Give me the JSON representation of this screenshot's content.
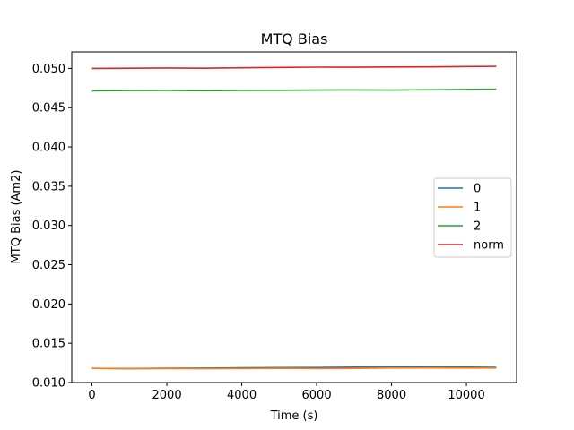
{
  "chart_data": {
    "type": "line",
    "title": "MTQ Bias",
    "xlabel": "Time (s)",
    "ylabel": "MTQ Bias (Am2)",
    "xlim": [
      -540,
      11340
    ],
    "ylim": [
      0.01,
      0.0521
    ],
    "xticks": [
      0,
      2000,
      4000,
      6000,
      8000,
      10000
    ],
    "xtick_labels": [
      "0",
      "2000",
      "4000",
      "6000",
      "8000",
      "10000"
    ],
    "yticks": [
      0.01,
      0.015,
      0.02,
      0.025,
      0.03,
      0.035,
      0.04,
      0.045,
      0.05
    ],
    "ytick_labels": [
      "0.010",
      "0.015",
      "0.020",
      "0.025",
      "0.030",
      "0.035",
      "0.040",
      "0.045",
      "0.050"
    ],
    "grid": false,
    "legend_position": "center-right",
    "x": [
      0,
      1000,
      2000,
      3000,
      4000,
      5000,
      6000,
      7000,
      8000,
      9000,
      10000,
      10800
    ],
    "series": [
      {
        "name": "0",
        "color": "#1f77b4",
        "values": [
          0.0118,
          0.01178,
          0.01182,
          0.01184,
          0.01188,
          0.0119,
          0.01192,
          0.01196,
          0.012,
          0.01198,
          0.01196,
          0.01194
        ]
      },
      {
        "name": "1",
        "color": "#ff7f0e",
        "values": [
          0.0118,
          0.01176,
          0.01178,
          0.01176,
          0.01178,
          0.0118,
          0.01178,
          0.0118,
          0.01184,
          0.01186,
          0.01184,
          0.01184
        ]
      },
      {
        "name": "2",
        "color": "#2ca02c",
        "values": [
          0.04715,
          0.04718,
          0.0472,
          0.04716,
          0.0472,
          0.04722,
          0.04724,
          0.04726,
          0.04724,
          0.04728,
          0.04732,
          0.04735
        ]
      },
      {
        "name": "norm",
        "color": "#d62728",
        "values": [
          0.05,
          0.05002,
          0.05005,
          0.05003,
          0.05008,
          0.05012,
          0.05016,
          0.05015,
          0.05018,
          0.0502,
          0.05024,
          0.05026
        ]
      }
    ]
  }
}
